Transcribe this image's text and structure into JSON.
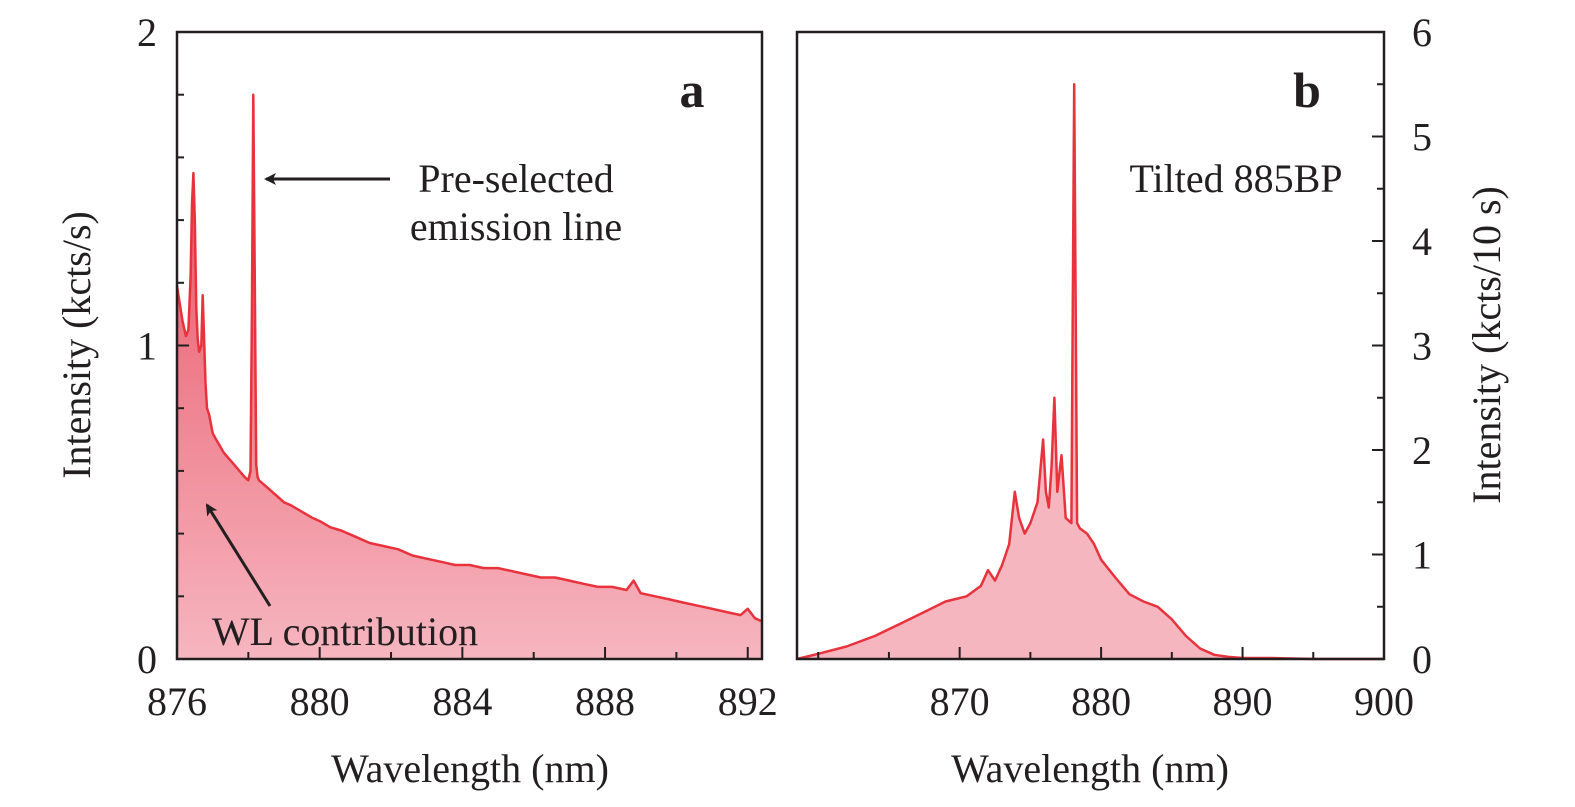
{
  "chart_data": [
    {
      "type": "area",
      "panel_label": "a",
      "xlabel": "Wavelength (nm)",
      "ylabel": "Intensity (kcts/s)",
      "xlim": [
        876,
        892.4
      ],
      "ylim": [
        0,
        2
      ],
      "x_ticks": [
        876,
        880,
        884,
        888,
        892
      ],
      "y_ticks": [
        0,
        1,
        2
      ],
      "y_axis_side": "left",
      "grid": false,
      "line_color": "#e8323c",
      "fill_gradient": [
        "#e8475a",
        "#f6b6c0"
      ],
      "annotations": [
        {
          "text_lines": [
            "Pre-selected",
            "emission line"
          ],
          "points_to": {
            "x": 878.2,
            "y": 1.54
          }
        },
        {
          "text_lines": [
            "WL contribution"
          ],
          "points_to": {
            "x": 876.9,
            "y": 0.49
          }
        }
      ],
      "series": [
        {
          "x": [
            876.0,
            876.15,
            876.25,
            876.32,
            876.38,
            876.42,
            876.46,
            876.5,
            876.54,
            876.58,
            876.62,
            876.68,
            876.72,
            876.76,
            876.8,
            876.84,
            876.9,
            877.0,
            877.1,
            877.2,
            877.3,
            877.45,
            877.6,
            877.75,
            877.9,
            878.0,
            878.06,
            878.1,
            878.14,
            878.18,
            878.22,
            878.26,
            878.3,
            878.4,
            878.6,
            878.8,
            879.0,
            879.2,
            879.5,
            879.8,
            880.0,
            880.3,
            880.6,
            881.0,
            881.4,
            881.8,
            882.2,
            882.6,
            883.0,
            883.4,
            883.8,
            884.2,
            884.6,
            885.0,
            885.4,
            885.8,
            886.2,
            886.6,
            887.0,
            887.4,
            887.8,
            888.2,
            888.6,
            888.8,
            889.0,
            889.4,
            889.8,
            890.2,
            890.6,
            891.0,
            891.4,
            891.8,
            892.0,
            892.2,
            892.4
          ],
          "y": [
            1.19,
            1.08,
            1.03,
            1.05,
            1.22,
            1.45,
            1.55,
            1.4,
            1.12,
            1.02,
            0.98,
            1.0,
            1.16,
            1.02,
            0.88,
            0.8,
            0.78,
            0.72,
            0.7,
            0.68,
            0.66,
            0.64,
            0.62,
            0.6,
            0.58,
            0.57,
            0.6,
            1.1,
            1.8,
            1.2,
            0.62,
            0.58,
            0.57,
            0.56,
            0.54,
            0.52,
            0.5,
            0.49,
            0.47,
            0.45,
            0.44,
            0.42,
            0.41,
            0.39,
            0.37,
            0.36,
            0.35,
            0.33,
            0.32,
            0.31,
            0.3,
            0.3,
            0.29,
            0.29,
            0.28,
            0.27,
            0.26,
            0.26,
            0.25,
            0.24,
            0.23,
            0.23,
            0.22,
            0.25,
            0.21,
            0.2,
            0.19,
            0.18,
            0.17,
            0.16,
            0.15,
            0.14,
            0.16,
            0.13,
            0.12
          ]
        }
      ]
    },
    {
      "type": "area",
      "panel_label": "b",
      "annotation_text": "Tilted 885BP",
      "xlabel": "Wavelength (nm)",
      "ylabel": "Intensity (kcts/10 s)",
      "xlim": [
        858.5,
        900
      ],
      "ylim": [
        0,
        6
      ],
      "x_ticks": [
        870,
        880,
        890,
        900
      ],
      "y_ticks": [
        0,
        1,
        2,
        3,
        4,
        5,
        6
      ],
      "y_axis_side": "right",
      "grid": false,
      "line_color": "#e8323c",
      "fill_color": "#f6b6c0",
      "series": [
        {
          "x": [
            858.5,
            860.0,
            862.0,
            864.0,
            866.0,
            867.5,
            869.0,
            870.5,
            871.5,
            872.0,
            872.5,
            873.0,
            873.5,
            873.9,
            874.2,
            874.6,
            875.0,
            875.5,
            875.9,
            876.1,
            876.3,
            876.5,
            876.7,
            876.9,
            877.2,
            877.5,
            877.9,
            878.1,
            878.3,
            878.5,
            879.0,
            879.5,
            880.0,
            881.0,
            882.0,
            883.0,
            884.0,
            885.0,
            886.0,
            887.0,
            888.0,
            889.0,
            890.0,
            892.0,
            895.0,
            900.0
          ],
          "y": [
            0.0,
            0.05,
            0.12,
            0.22,
            0.35,
            0.45,
            0.55,
            0.6,
            0.7,
            0.85,
            0.75,
            0.9,
            1.1,
            1.6,
            1.35,
            1.2,
            1.3,
            1.5,
            2.1,
            1.6,
            1.45,
            1.85,
            2.5,
            1.6,
            1.95,
            1.35,
            1.3,
            5.5,
            1.3,
            1.25,
            1.2,
            1.1,
            0.95,
            0.78,
            0.62,
            0.55,
            0.5,
            0.38,
            0.22,
            0.1,
            0.04,
            0.02,
            0.01,
            0.01,
            0.0,
            0.0
          ]
        }
      ]
    }
  ]
}
